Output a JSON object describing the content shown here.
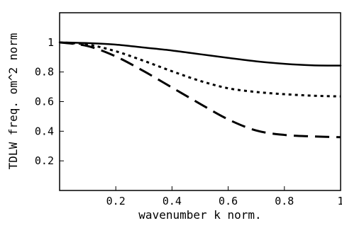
{
  "chart_data": {
    "type": "line",
    "xlabel": "wavenumber k norm.",
    "ylabel": "TDLW freq. om^2 norm",
    "xlim": [
      0,
      1
    ],
    "ylim": [
      0,
      1.2
    ],
    "x_ticks": [
      0.2,
      0.4,
      0.6,
      0.8,
      1
    ],
    "x_tick_labels": [
      "0.2",
      "0.4",
      "0.6",
      "0.8",
      "1"
    ],
    "y_ticks": [
      0.2,
      0.4,
      0.6,
      0.8,
      1
    ],
    "y_tick_labels": [
      "0.2",
      "0.4",
      "0.6",
      "0.8",
      "1"
    ],
    "grid": false,
    "series": [
      {
        "style": "solid",
        "x": [
          0,
          0.1,
          0.2,
          0.3,
          0.4,
          0.5,
          0.6,
          0.7,
          0.8,
          0.9,
          1.0
        ],
        "y": [
          1.0,
          0.995,
          0.985,
          0.965,
          0.945,
          0.92,
          0.895,
          0.872,
          0.855,
          0.845,
          0.843
        ]
      },
      {
        "style": "dotted",
        "x": [
          0,
          0.1,
          0.2,
          0.3,
          0.4,
          0.5,
          0.6,
          0.7,
          0.8,
          0.9,
          1.0
        ],
        "y": [
          1.0,
          0.985,
          0.94,
          0.875,
          0.805,
          0.74,
          0.69,
          0.665,
          0.65,
          0.64,
          0.635
        ]
      },
      {
        "style": "dashed",
        "x": [
          0,
          0.1,
          0.2,
          0.3,
          0.4,
          0.5,
          0.6,
          0.7,
          0.8,
          0.9,
          1.0
        ],
        "y": [
          1.0,
          0.975,
          0.905,
          0.805,
          0.695,
          0.585,
          0.48,
          0.405,
          0.375,
          0.365,
          0.36
        ]
      }
    ]
  }
}
